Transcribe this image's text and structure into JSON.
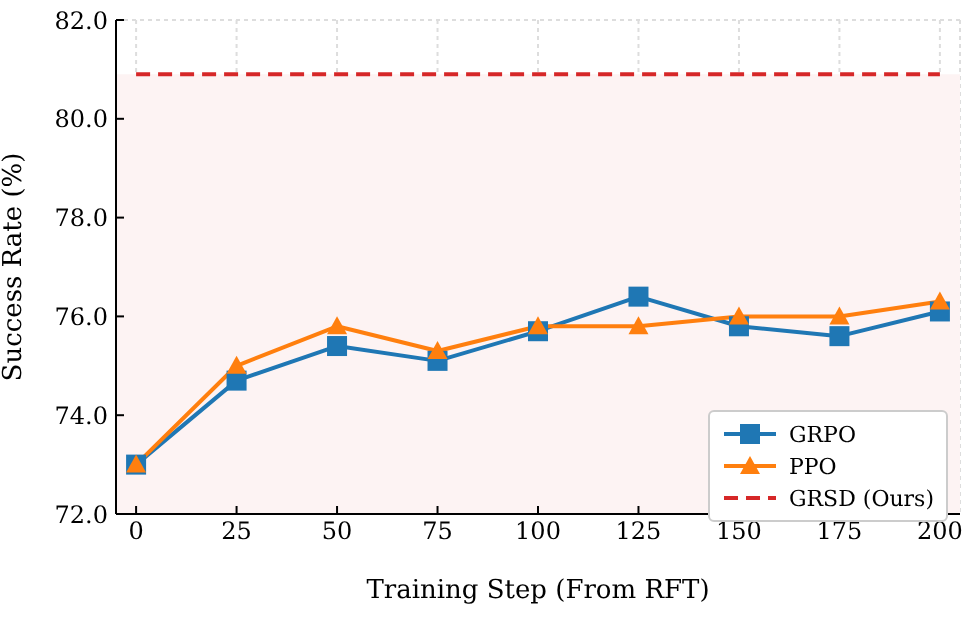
{
  "chart_data": {
    "type": "line",
    "xlabel": "Training Step (From RFT)",
    "ylabel": "Success Rate (%)",
    "x": [
      0,
      25,
      50,
      75,
      100,
      125,
      150,
      175,
      200
    ],
    "series": [
      {
        "name": "GRPO",
        "color": "#1f77b4",
        "marker": "square",
        "values": [
          73.0,
          74.7,
          75.4,
          75.1,
          75.7,
          76.4,
          75.8,
          75.6,
          76.1
        ]
      },
      {
        "name": "PPO",
        "color": "#ff7f0e",
        "marker": "triangle",
        "values": [
          73.0,
          75.0,
          75.8,
          75.3,
          75.8,
          75.8,
          76.0,
          76.0,
          76.3
        ]
      },
      {
        "name": "GRSD (Ours)",
        "color": "#d62728",
        "marker": "none",
        "line_style": "dashed",
        "values": [
          80.9,
          80.9,
          80.9,
          80.9,
          80.9,
          80.9,
          80.9,
          80.9,
          80.9
        ]
      }
    ],
    "bands": [
      {
        "axis": "y",
        "from": 72,
        "to": 80.9,
        "color": "#fdf3f3"
      }
    ],
    "xlim": [
      -5,
      205
    ],
    "xticks": [
      0,
      25,
      50,
      75,
      100,
      125,
      150,
      175,
      200
    ],
    "ylim": [
      72,
      82
    ],
    "yticks": [
      {
        "value": 72,
        "label": "72.0"
      },
      {
        "value": 74,
        "label": "74.0"
      },
      {
        "value": 76,
        "label": "76.0"
      },
      {
        "value": 78,
        "label": "78.0"
      },
      {
        "value": 80,
        "label": "80.0"
      },
      {
        "value": 82,
        "label": "82.0"
      }
    ],
    "grid": true,
    "legend": "bottom right"
  }
}
